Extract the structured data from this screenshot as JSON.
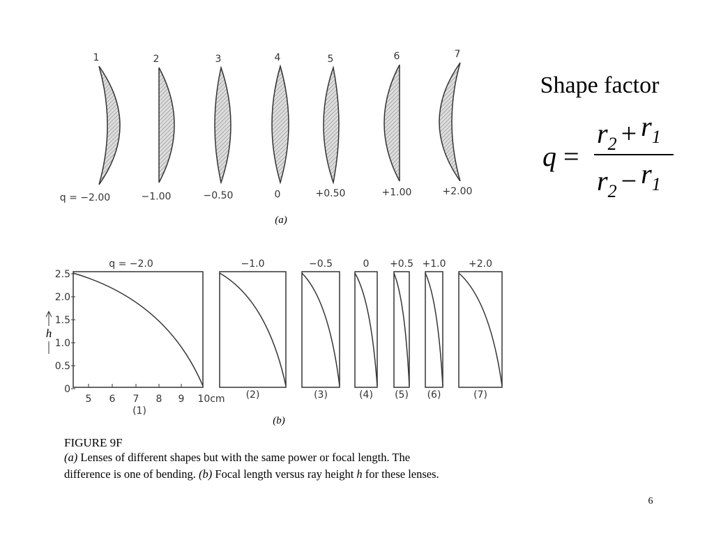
{
  "slide": {
    "title": "Shape factor",
    "page_number": "6",
    "formula": {
      "lhs": "q",
      "equals": "=",
      "numerator": [
        "r",
        "2",
        "+",
        "r",
        "1"
      ],
      "denominator": [
        "r",
        "2",
        "−",
        "r",
        "1"
      ]
    }
  },
  "figure_a": {
    "caption": "(a)",
    "lenses": [
      {
        "number": "1",
        "q": "q = −2.00"
      },
      {
        "number": "2",
        "q": "−1.00"
      },
      {
        "number": "3",
        "q": "−0.50"
      },
      {
        "number": "4",
        "q": "0"
      },
      {
        "number": "5",
        "q": "+0.50"
      },
      {
        "number": "6",
        "q": "+1.00"
      },
      {
        "number": "7",
        "q": "+2.00"
      }
    ]
  },
  "figure_b": {
    "caption": "(b)",
    "y_axis_label": "h",
    "y_ticks": [
      "2.5",
      "2.0",
      "1.5",
      "1.0",
      "0.5",
      "0"
    ],
    "x_ticks": [
      "5",
      "6",
      "7",
      "8",
      "9",
      "10cm"
    ],
    "panels": [
      {
        "q": "q = −2.0",
        "number": "(1)"
      },
      {
        "q": "−1.0",
        "number": "(2)"
      },
      {
        "q": "−0.5",
        "number": "(3)"
      },
      {
        "q": "0",
        "number": "(4)"
      },
      {
        "q": "+0.5",
        "number": "(5)"
      },
      {
        "q": "+1.0",
        "number": "(6)"
      },
      {
        "q": "+2.0",
        "number": "(7)"
      }
    ]
  },
  "figure_caption": {
    "label": "FIGURE 9F",
    "line1": [
      "(a)",
      " Lenses of different shapes but with the same power or focal length.  The"
    ],
    "line2": [
      "difference is one of bending.  ",
      "(b)",
      " Focal length versus ray height ",
      "h",
      " for these lenses."
    ]
  }
}
